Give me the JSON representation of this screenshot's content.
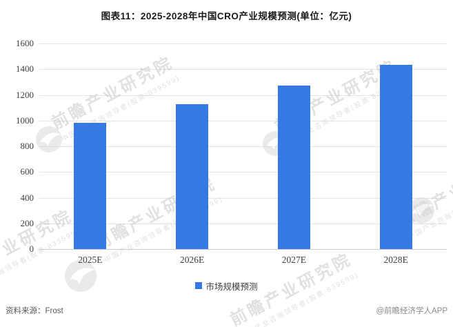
{
  "title": "图表11：2025-2028年中国CRO产业规模预测(单位：亿元)",
  "chart_data": {
    "type": "bar",
    "title": "图表11：2025-2028年中国CRO产业规模预测(单位：亿元)",
    "categories": [
      "2025E",
      "2026E",
      "2027E",
      "2028E"
    ],
    "series": [
      {
        "name": "市场规模预测",
        "values": [
          985,
          1125,
          1270,
          1435
        ]
      }
    ],
    "unit": "亿元",
    "xlabel": "",
    "ylabel": "",
    "ylim": [
      0,
      1600
    ],
    "ytick_step": 200,
    "grid": true,
    "legend_position": "bottom",
    "bar_color": "#3779e2"
  },
  "legend": {
    "label": "市场规模预测"
  },
  "footer": {
    "source_label": "资料来源：Frost",
    "brand_label": "@前瞻经济学人APP"
  },
  "watermark": {
    "text": "前瞻产业研究院",
    "subtext": "中国产业咨询领导者(股票:839599)"
  },
  "colors": {
    "bar": "#3779e2",
    "grid": "#e3e3e3",
    "axis_line": "#c9c9c9",
    "axis_text": "#404040",
    "title_text": "#1a1a1a",
    "legend_text": "#3d3d3d",
    "source_text": "#595959",
    "brand_text": "#8a8a8a",
    "watermark": "#c9c9c9"
  }
}
